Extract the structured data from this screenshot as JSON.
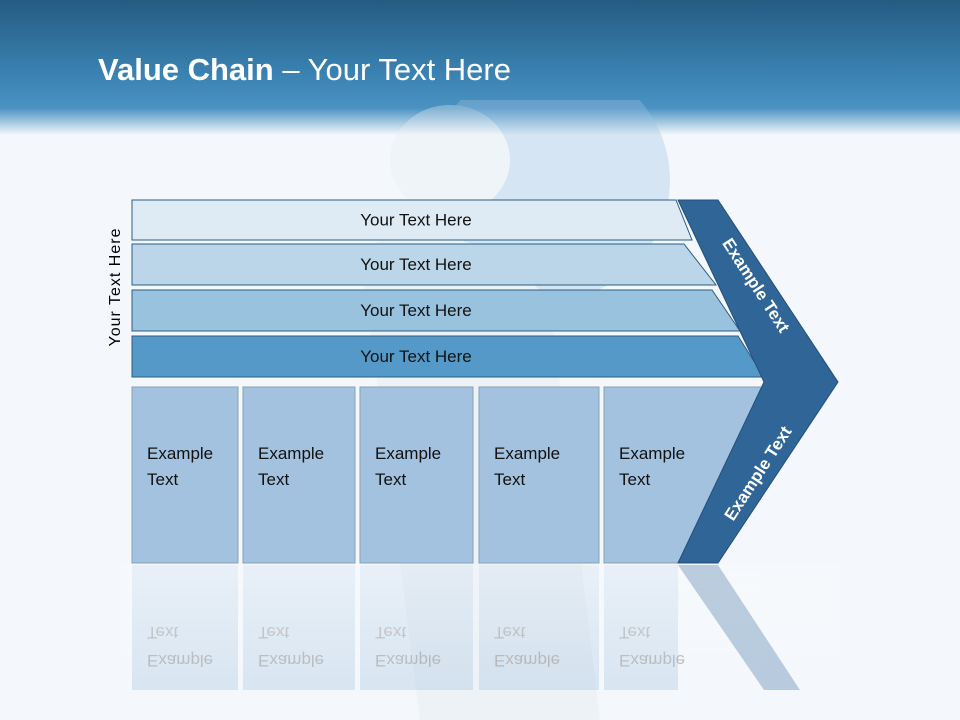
{
  "slide": {
    "title_bold": "Value Chain",
    "title_rest": " – Your Text Here",
    "side_label": "Your Text Here",
    "support_rows": [
      {
        "label": "Your Text Here",
        "color": "#deebf5"
      },
      {
        "label": "Your Text Here",
        "color": "#bad6e8"
      },
      {
        "label": "Your Text Here",
        "color": "#98c2de"
      },
      {
        "label": "Your Text Here",
        "color": "#5499c8"
      }
    ],
    "primary_columns": [
      {
        "line1": "Example",
        "line2": "Text"
      },
      {
        "line1": "Example",
        "line2": "Text"
      },
      {
        "line1": "Example",
        "line2": "Text"
      },
      {
        "line1": "Example",
        "line2": "Text"
      },
      {
        "line1": "Example",
        "line2": "Text"
      }
    ],
    "margin_top": "Example Text",
    "margin_bottom": "Example Text",
    "colors": {
      "column": "#a3c2df",
      "chevron": "#2f6597",
      "header": "#2f73a3"
    }
  }
}
